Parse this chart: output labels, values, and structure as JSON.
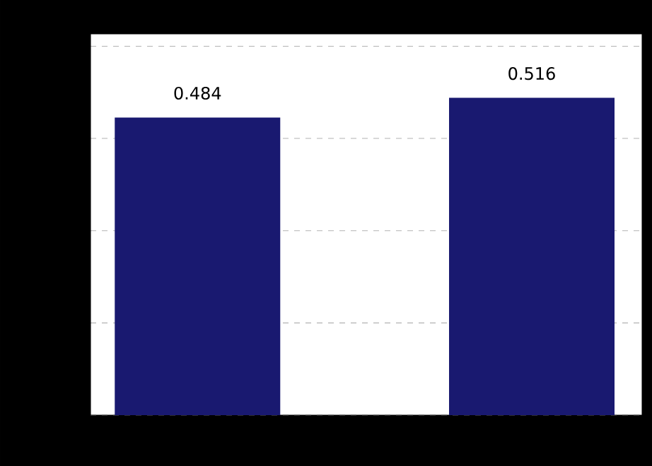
{
  "chart_data": {
    "type": "bar",
    "categories": [
      null,
      null
    ],
    "values": [
      0.484,
      0.516
    ],
    "color": "#191970",
    "ylim": [
      0,
      0.62
    ],
    "yticks": [
      {
        "value": 0,
        "label": null
      },
      {
        "value": 0.15,
        "label": null
      },
      {
        "value": 0.3,
        "label": null
      },
      {
        "value": 0.45,
        "label": null
      },
      {
        "value": 0.6,
        "label": null
      }
    ],
    "grid": "y",
    "data_labels": true
  }
}
